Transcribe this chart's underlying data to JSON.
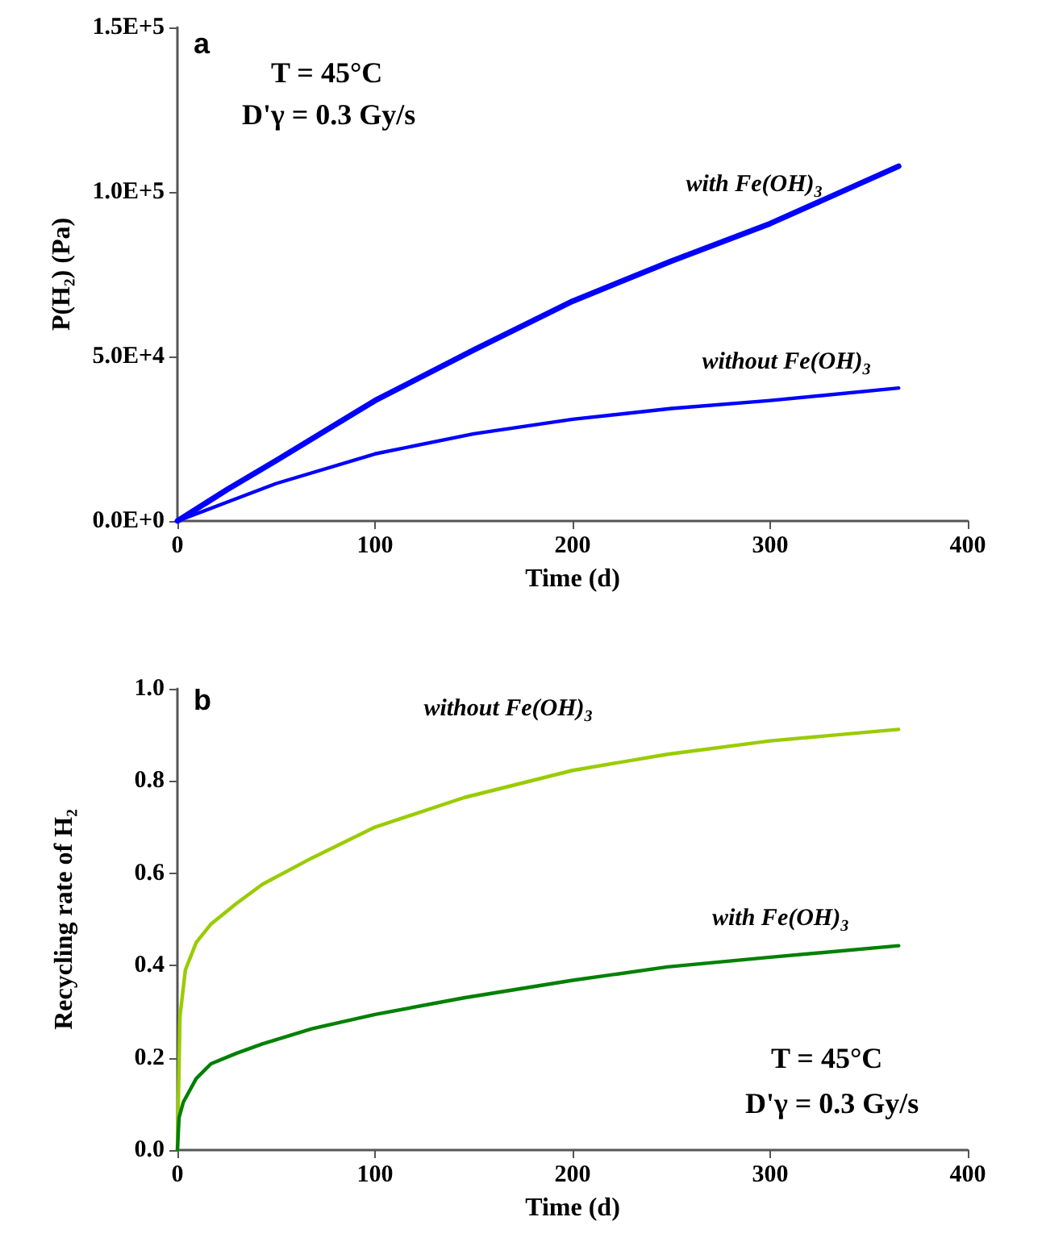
{
  "chart_data": [
    {
      "type": "line",
      "xlabel": "Time (d)",
      "ylabel": "P(H₂) (Pa)",
      "annotations": [
        "a",
        "T = 45°C",
        "D'γ = 0.3 Gy/s"
      ],
      "xlim": [
        0,
        400
      ],
      "xticks": [
        0,
        100,
        200,
        300,
        400
      ],
      "ylim": [
        0,
        150000
      ],
      "yticks": [
        {
          "value": 0,
          "label": "0.0E+0"
        },
        {
          "value": 50000,
          "label": "5.0E+4"
        },
        {
          "value": 100000,
          "label": "1.0E+5"
        },
        {
          "value": 150000,
          "label": "1.5E+5"
        }
      ],
      "grid": false,
      "legend": false,
      "marker": "none",
      "line_style": "solid",
      "series": [
        {
          "name": "with Fe(OH)$_{3}$",
          "color": "#0000ff",
          "x": [
            0,
            25,
            50,
            100,
            150,
            200,
            250,
            300,
            365
          ],
          "values": [
            0,
            9500,
            18400,
            36600,
            52000,
            66800,
            79000,
            90400,
            107800
          ]
        },
        {
          "name": "without Fe(OH)$_{3}$",
          "color": "#0000ff",
          "x": [
            0,
            25,
            50,
            100,
            150,
            200,
            250,
            300,
            365
          ],
          "values": [
            0,
            5700,
            11400,
            20400,
            26500,
            30900,
            34200,
            36600,
            40400
          ]
        }
      ]
    },
    {
      "type": "line",
      "xlabel": "Time (d)",
      "ylabel": "Recycling rate of H₂",
      "annotations": [
        "b",
        "T = 45°C",
        "D'γ = 0.3 Gy/s"
      ],
      "xlim": [
        0,
        400
      ],
      "xticks": [
        0,
        100,
        200,
        300,
        400
      ],
      "ylim": [
        0,
        1
      ],
      "yticks": [
        {
          "value": 0,
          "label": "0.0"
        },
        0.2,
        0.4,
        0.6,
        0.8,
        {
          "value": 1,
          "label": "1.0"
        }
      ],
      "grid": false,
      "legend": false,
      "marker": "none",
      "line_style": "solid",
      "series": [
        {
          "name": "without Fe(OH)$_{3}$",
          "color": "#99cc00",
          "x": [
            0,
            1.3,
            4,
            9.5,
            17,
            30,
            43,
            68,
            100,
            145,
            200,
            248,
            300,
            365
          ],
          "values": [
            0,
            0.29,
            0.39,
            0.45,
            0.49,
            0.535,
            0.576,
            0.633,
            0.7,
            0.764,
            0.823,
            0.858,
            0.887,
            0.912
          ]
        },
        {
          "name": "with Fe(OH)$_{3}$",
          "color": "#008000",
          "x": [
            0,
            0.8,
            3,
            9.5,
            17,
            30,
            43,
            68,
            100,
            145,
            200,
            248,
            300,
            365
          ],
          "values": [
            0,
            0.07,
            0.104,
            0.155,
            0.187,
            0.21,
            0.23,
            0.263,
            0.294,
            0.33,
            0.368,
            0.397,
            0.418,
            0.443
          ]
        }
      ]
    }
  ]
}
